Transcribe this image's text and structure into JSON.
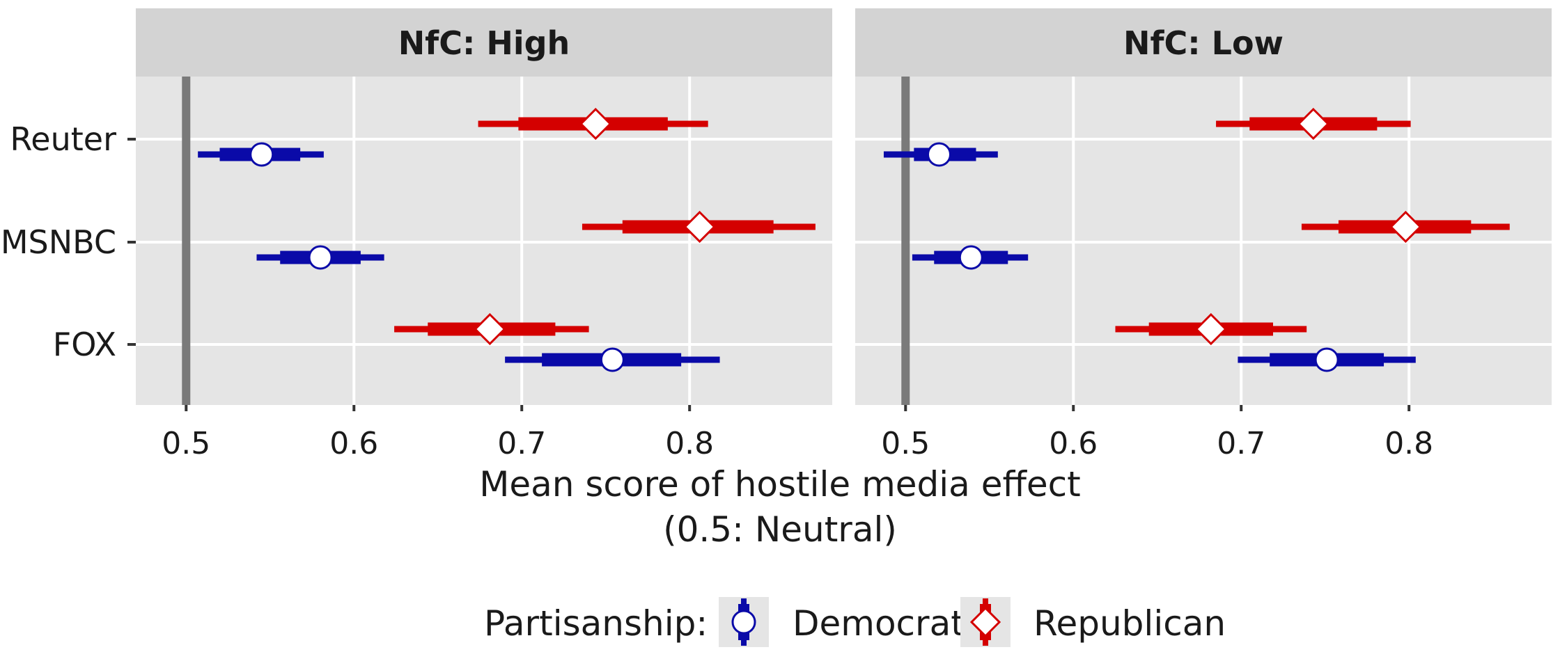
{
  "chart_data": {
    "type": "interval-plot",
    "xlabel_line1": "Mean score of hostile media effect",
    "xlabel_line2": "(0.5: Neutral)",
    "xlim": [
      0.47,
      0.885
    ],
    "x_ticks": [
      0.5,
      0.6,
      0.7,
      0.8
    ],
    "x_tick_labels": [
      "0.5",
      "0.6",
      "0.7",
      "0.8"
    ],
    "reference_line": 0.5,
    "categories": [
      "Reuter",
      "MSNBC",
      "FOX"
    ],
    "legend": {
      "title": "Partisanship:",
      "position": "bottom",
      "items": [
        {
          "key": "democrat",
          "label": "Democrat"
        },
        {
          "key": "republican",
          "label": "Republican"
        }
      ]
    },
    "colors": {
      "democrat": "#0a0aa8",
      "republican": "#d40000",
      "reference_line": "#7a7a7a",
      "panel_bg": "#e5e5e5",
      "strip_bg": "#d3d3d3",
      "grid": "#ffffff"
    },
    "panels": [
      {
        "title": "NfC: High",
        "series": [
          {
            "key": "republican",
            "points": [
              {
                "category": "Reuter",
                "mean": 0.744,
                "inner": [
                  0.698,
                  0.787
                ],
                "outer": [
                  0.674,
                  0.811
                ]
              },
              {
                "category": "MSNBC",
                "mean": 0.806,
                "inner": [
                  0.76,
                  0.85
                ],
                "outer": [
                  0.736,
                  0.875
                ]
              },
              {
                "category": "FOX",
                "mean": 0.681,
                "inner": [
                  0.644,
                  0.72
                ],
                "outer": [
                  0.624,
                  0.74
                ]
              }
            ]
          },
          {
            "key": "democrat",
            "points": [
              {
                "category": "Reuter",
                "mean": 0.545,
                "inner": [
                  0.52,
                  0.568
                ],
                "outer": [
                  0.507,
                  0.582
                ]
              },
              {
                "category": "MSNBC",
                "mean": 0.58,
                "inner": [
                  0.556,
                  0.604
                ],
                "outer": [
                  0.542,
                  0.618
                ]
              },
              {
                "category": "FOX",
                "mean": 0.754,
                "inner": [
                  0.712,
                  0.795
                ],
                "outer": [
                  0.69,
                  0.818
                ]
              }
            ]
          }
        ]
      },
      {
        "title": "NfC: Low",
        "series": [
          {
            "key": "republican",
            "points": [
              {
                "category": "Reuter",
                "mean": 0.743,
                "inner": [
                  0.705,
                  0.781
                ],
                "outer": [
                  0.685,
                  0.801
                ]
              },
              {
                "category": "MSNBC",
                "mean": 0.798,
                "inner": [
                  0.758,
                  0.837
                ],
                "outer": [
                  0.736,
                  0.86
                ]
              },
              {
                "category": "FOX",
                "mean": 0.682,
                "inner": [
                  0.645,
                  0.719
                ],
                "outer": [
                  0.625,
                  0.739
                ]
              }
            ]
          },
          {
            "key": "democrat",
            "points": [
              {
                "category": "Reuter",
                "mean": 0.52,
                "inner": [
                  0.505,
                  0.542
                ],
                "outer": [
                  0.487,
                  0.555
                ]
              },
              {
                "category": "MSNBC",
                "mean": 0.539,
                "inner": [
                  0.517,
                  0.561
                ],
                "outer": [
                  0.504,
                  0.573
                ]
              },
              {
                "category": "FOX",
                "mean": 0.751,
                "inner": [
                  0.717,
                  0.785
                ],
                "outer": [
                  0.698,
                  0.804
                ]
              }
            ]
          }
        ]
      }
    ]
  }
}
